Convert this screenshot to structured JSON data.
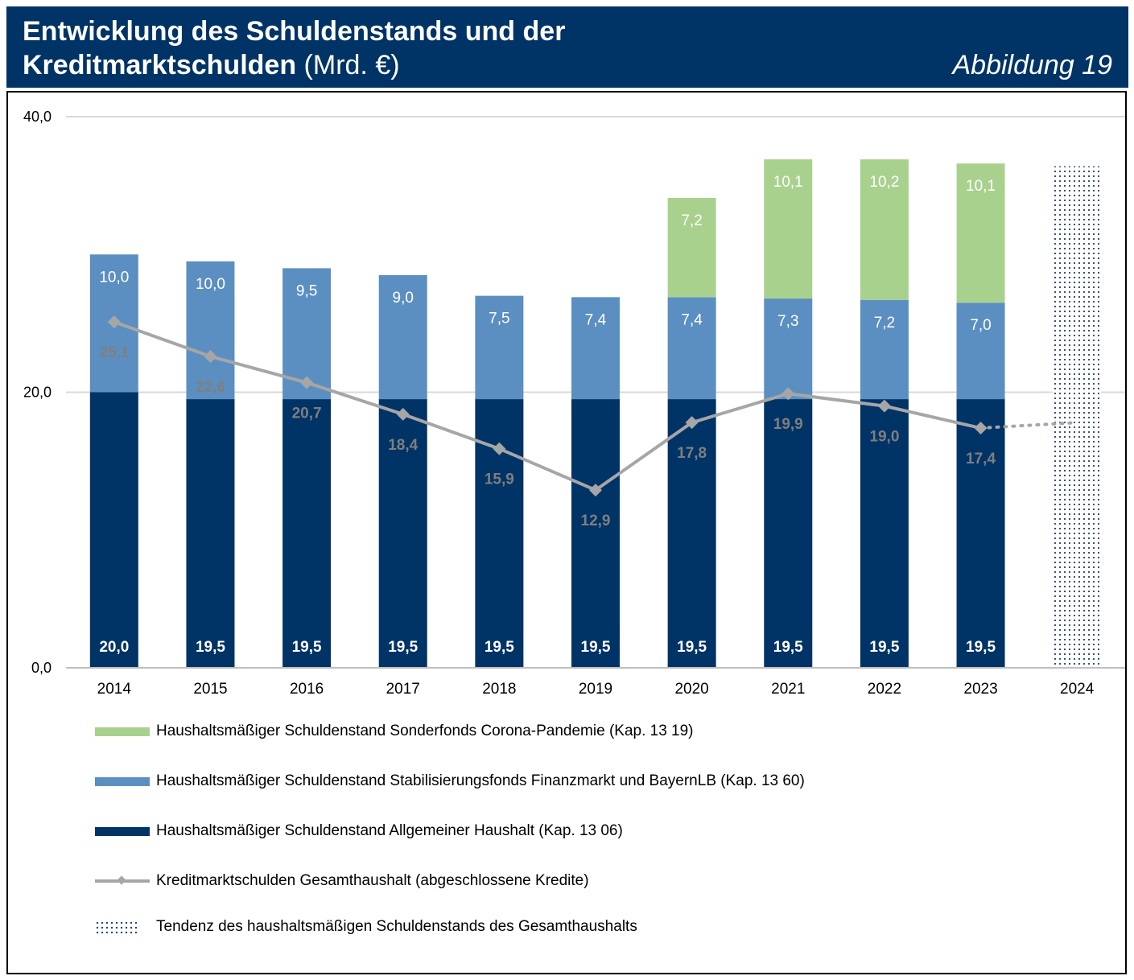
{
  "header": {
    "title_line1": "Entwicklung des Schuldenstands und der",
    "title_line2_bold": "Kreditmarktschulden",
    "title_line2_unit": "(Mrd. €)",
    "figure_label": "Abbildung 19"
  },
  "colors": {
    "header_bg": "#003366",
    "corona": "#a9d18e",
    "stabilisierung": "#5b8fc1",
    "allgemein": "#003366",
    "line": "#a6a6a6",
    "line_label": "#7f7f7f",
    "tendency_dots": "#1f3f6e"
  },
  "chart_data": {
    "type": "bar",
    "stacked": true,
    "categories": [
      "2014",
      "2015",
      "2016",
      "2017",
      "2018",
      "2019",
      "2020",
      "2021",
      "2022",
      "2023",
      "2024"
    ],
    "ylim": [
      0,
      40
    ],
    "yticks": [
      0,
      20,
      40
    ],
    "ytick_labels": [
      "0,0",
      "20,0",
      "40,0"
    ],
    "grid": true,
    "series": [
      {
        "name": "Haushaltsmäßiger Schuldenstand Allgemeiner Haushalt (Kap. 13 06)",
        "key": "allgemein",
        "values": [
          20.0,
          19.5,
          19.5,
          19.5,
          19.5,
          19.5,
          19.5,
          19.5,
          19.5,
          19.5,
          null
        ],
        "labels": [
          "20,0",
          "19,5",
          "19,5",
          "19,5",
          "19,5",
          "19,5",
          "19,5",
          "19,5",
          "19,5",
          "19,5",
          null
        ]
      },
      {
        "name": "Haushaltsmäßiger Schuldenstand Stabilisierungsfonds Finanzmarkt und BayernLB (Kap. 13 60)",
        "key": "stabilisierung",
        "values": [
          10.0,
          10.0,
          9.5,
          9.0,
          7.5,
          7.4,
          7.4,
          7.3,
          7.2,
          7.0,
          null
        ],
        "labels": [
          "10,0",
          "10,0",
          "9,5",
          "9,0",
          "7,5",
          "7,4",
          "7,4",
          "7,3",
          "7,2",
          "7,0",
          null
        ]
      },
      {
        "name": "Haushaltsmäßiger Schuldenstand Sonderfonds Corona-Pandemie (Kap. 13 19)",
        "key": "corona",
        "values": [
          null,
          null,
          null,
          null,
          null,
          null,
          7.2,
          10.1,
          10.2,
          10.1,
          null
        ],
        "labels": [
          null,
          null,
          null,
          null,
          null,
          null,
          "7,2",
          "10,1",
          "10,2",
          "10,1",
          null
        ]
      }
    ],
    "line_series": {
      "name": "Kreditmarktschulden Gesamthaushalt (abgeschlossene Kredite)",
      "values": [
        25.1,
        22.6,
        20.7,
        18.4,
        15.9,
        12.9,
        17.8,
        19.9,
        19.0,
        17.4,
        null
      ],
      "labels": [
        "25,1",
        "22,6",
        "20,7",
        "18,4",
        "15,9",
        "12,9",
        "17,8",
        "19,9",
        "19,0",
        "17,4",
        null
      ],
      "trend_2024": 17.8
    },
    "tendency": {
      "name": "Tendenz des haushaltsmäßigen Schuldenstands des Gesamthaushalts",
      "category": "2024",
      "value": 36.4
    }
  },
  "legend": {
    "corona": "Haushaltsmäßiger Schuldenstand Sonderfonds Corona-Pandemie (Kap. 13 19)",
    "stabilisierung": "Haushaltsmäßiger Schuldenstand Stabilisierungsfonds Finanzmarkt und BayernLB (Kap. 13 60)",
    "allgemein": "Haushaltsmäßiger Schuldenstand Allgemeiner Haushalt (Kap. 13 06)",
    "line": "Kreditmarktschulden Gesamthaushalt (abgeschlossene Kredite)",
    "tendency": "Tendenz des haushaltsmäßigen Schuldenstands des Gesamthaushalts"
  }
}
